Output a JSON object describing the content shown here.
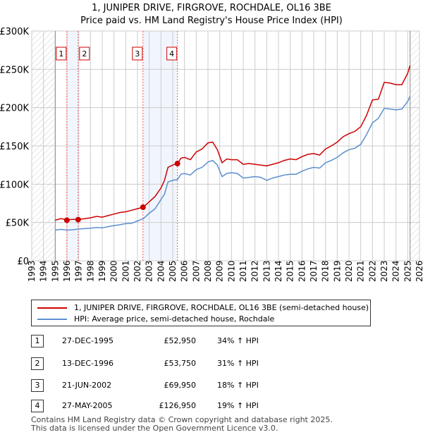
{
  "title": "1, JUNIPER DRIVE, FIRGROVE, ROCHDALE, OL16 3BE",
  "subtitle": "Price paid vs. HM Land Registry's House Price Index (HPI)",
  "chart_data": {
    "type": "line",
    "title": "1, JUNIPER DRIVE, FIRGROVE, ROCHDALE, OL16 3BE",
    "subtitle": "Price paid vs. HM Land Registry's House Price Index (HPI)",
    "xlim": [
      1993,
      2026
    ],
    "ylim": [
      0,
      300000
    ],
    "x_ticks": [
      "1993",
      "1994",
      "1995",
      "1996",
      "1997",
      "1998",
      "1999",
      "2000",
      "2001",
      "2002",
      "2003",
      "2004",
      "2005",
      "2006",
      "2007",
      "2008",
      "2009",
      "2010",
      "2011",
      "2012",
      "2013",
      "2014",
      "2015",
      "2016",
      "2017",
      "2018",
      "2019",
      "2020",
      "2021",
      "2022",
      "2023",
      "2024",
      "2025",
      "2026"
    ],
    "y_ticks": [
      {
        "v": 0,
        "l": "£0"
      },
      {
        "v": 50000,
        "l": "£50K"
      },
      {
        "v": 100000,
        "l": "£100K"
      },
      {
        "v": 150000,
        "l": "£150K"
      },
      {
        "v": 200000,
        "l": "£200K"
      },
      {
        "v": 250000,
        "l": "£250K"
      },
      {
        "v": 300000,
        "l": "£300K"
      }
    ],
    "grid": true,
    "data_range": [
      1995,
      2025.2
    ],
    "shaded_ranges": [
      [
        1995.99,
        1996.95
      ],
      [
        2002.47,
        2005.4
      ]
    ],
    "series": [
      {
        "name": "1, JUNIPER DRIVE, FIRGROVE, ROCHDALE, OL16 3BE (semi-detached house)",
        "color": "#cc0000",
        "x": [
          1995,
          1995.5,
          1996,
          1996.5,
          1997,
          1997.5,
          1998,
          1998.5,
          1999,
          1999.5,
          2000,
          2000.5,
          2001,
          2001.5,
          2002,
          2002.5,
          2003,
          2003.5,
          2004,
          2004.3,
          2004.6,
          2005,
          2005.4,
          2005.7,
          2006,
          2006.5,
          2007,
          2007.5,
          2008,
          2008.4,
          2008.8,
          2009.2,
          2009.6,
          2010,
          2010.5,
          2011,
          2011.5,
          2012,
          2012.5,
          2013,
          2013.5,
          2014,
          2014.5,
          2015,
          2015.5,
          2016,
          2016.5,
          2017,
          2017.5,
          2018,
          2018.5,
          2019,
          2019.5,
          2020,
          2020.5,
          2021,
          2021.5,
          2022,
          2022.5,
          2023,
          2023.5,
          2024,
          2024.5,
          2025,
          2025.2
        ],
        "y": [
          53000,
          55000,
          53500,
          54000,
          54000,
          55000,
          56000,
          58000,
          57000,
          59000,
          61000,
          63000,
          64000,
          66000,
          68000,
          70000,
          77000,
          84000,
          95000,
          105000,
          122000,
          125000,
          127000,
          134000,
          135000,
          132000,
          142000,
          146000,
          154000,
          155000,
          145000,
          128000,
          133000,
          132000,
          132000,
          126000,
          127000,
          126000,
          125000,
          124000,
          126000,
          128000,
          131000,
          133000,
          132000,
          136000,
          139000,
          140000,
          138000,
          146000,
          150000,
          155000,
          162000,
          166000,
          169000,
          175000,
          190000,
          210000,
          211000,
          233000,
          232000,
          230000,
          230000,
          245000,
          255000
        ]
      },
      {
        "name": "HPI: Average price, semi-detached house, Rochdale",
        "color": "#5b8fd0",
        "x": [
          1995,
          1995.5,
          1996,
          1996.5,
          1997,
          1997.5,
          1998,
          1998.5,
          1999,
          1999.5,
          2000,
          2000.5,
          2001,
          2001.5,
          2002,
          2002.5,
          2003,
          2003.5,
          2004,
          2004.3,
          2004.6,
          2005,
          2005.4,
          2005.7,
          2006,
          2006.5,
          2007,
          2007.5,
          2008,
          2008.4,
          2008.8,
          2009.2,
          2009.6,
          2010,
          2010.5,
          2011,
          2011.5,
          2012,
          2012.5,
          2013,
          2013.5,
          2014,
          2014.5,
          2015,
          2015.5,
          2016,
          2016.5,
          2017,
          2017.5,
          2018,
          2018.5,
          2019,
          2019.5,
          2020,
          2020.5,
          2021,
          2021.5,
          2022,
          2022.5,
          2023,
          2023.5,
          2024,
          2024.5,
          2025,
          2025.2
        ],
        "y": [
          40000,
          41000,
          40000,
          40500,
          41500,
          42000,
          42500,
          43500,
          43000,
          44500,
          46000,
          47000,
          48500,
          49000,
          52000,
          55000,
          62000,
          68000,
          80000,
          87000,
          103000,
          105000,
          106000,
          113000,
          114000,
          112000,
          119000,
          122000,
          129000,
          131000,
          125000,
          110000,
          114000,
          115000,
          114000,
          108000,
          109000,
          110000,
          109000,
          105000,
          108000,
          110000,
          112000,
          113000,
          113000,
          117000,
          120000,
          122000,
          121000,
          128000,
          131000,
          135000,
          141000,
          145000,
          147000,
          152000,
          165000,
          180000,
          186000,
          199000,
          198000,
          197000,
          198000,
          208000,
          215000
        ]
      }
    ],
    "sales": [
      {
        "n": "1",
        "x": 1995.99,
        "price": 52950
      },
      {
        "n": "2",
        "x": 1996.95,
        "price": 53750
      },
      {
        "n": "3",
        "x": 2002.47,
        "price": 69950
      },
      {
        "n": "4",
        "x": 2005.4,
        "price": 126950
      }
    ]
  },
  "legend": {
    "red": "1, JUNIPER DRIVE, FIRGROVE, ROCHDALE, OL16 3BE (semi-detached house)",
    "blue": "HPI: Average price, semi-detached house, Rochdale"
  },
  "table": [
    {
      "n": "1",
      "date": "27-DEC-1995",
      "price": "£52,950",
      "hpi": "34% ↑ HPI"
    },
    {
      "n": "2",
      "date": "13-DEC-1996",
      "price": "£53,750",
      "hpi": "31% ↑ HPI"
    },
    {
      "n": "3",
      "date": "21-JUN-2002",
      "price": "£69,950",
      "hpi": "18% ↑ HPI"
    },
    {
      "n": "4",
      "date": "27-MAY-2005",
      "price": "£126,950",
      "hpi": "19% ↑ HPI"
    }
  ],
  "footer": [
    "Contains HM Land Registry data © Crown copyright and database right 2025.",
    "This data is licensed under the Open Government Licence v3.0."
  ]
}
